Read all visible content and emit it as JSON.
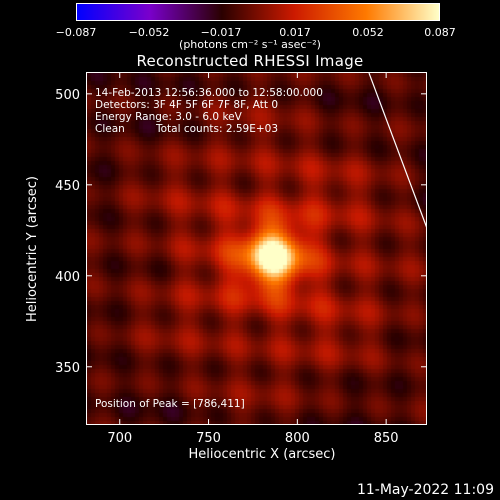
{
  "colorbar": {
    "ticks": [
      "−0.087",
      "−0.052",
      "−0.017",
      "0.017",
      "0.052",
      "0.087"
    ],
    "tick_values": [
      -0.087,
      -0.052,
      -0.017,
      0.017,
      0.052,
      0.087
    ],
    "units": "(photons cm⁻² s⁻¹ asec⁻²)",
    "colors": [
      "#0000ff",
      "#7a00cc",
      "#2a0000",
      "#cc1a00",
      "#ff7a00",
      "#ffffc8"
    ]
  },
  "chart_data": {
    "type": "heatmap",
    "title": "Reconstructed RHESSI Image",
    "xlabel": "Heliocentric X (arcsec)",
    "ylabel": "Heliocentric Y (arcsec)",
    "xlim": [
      681,
      873
    ],
    "ylim": [
      318,
      512
    ],
    "xticks": [
      700,
      750,
      800,
      850
    ],
    "yticks": [
      350,
      400,
      450,
      500
    ],
    "peak": [
      786,
      411
    ],
    "annotations": {
      "time": "14-Feb-2013 12:56:36.000 to 12:58:00.000",
      "detectors": "Detectors: 3F 4F 5F 6F 7F 8F, Att 0",
      "energy": "Energy Range: 3.0 - 6.0 keV",
      "method": "Clean",
      "counts": "Total counts: 2.59E+03",
      "peak_label": "Position of Peak = [786,411]"
    }
  },
  "footer": {
    "timestamp": "11-May-2022 11:09"
  }
}
